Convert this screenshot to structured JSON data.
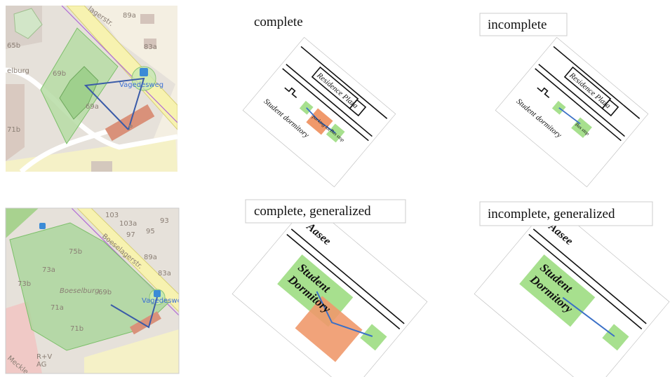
{
  "panels": {
    "complete": "complete",
    "incomplete": "incomplete",
    "complete_generalized": "complete, generalized",
    "incomplete_generalized": "incomplete, generalized"
  },
  "map_top": {
    "street": "lagerstr.",
    "labels": [
      "89a",
      "83a",
      "65b",
      "elburg",
      "69b",
      "69a",
      "71b"
    ],
    "bus_stop": "Vagedesweg"
  },
  "map_bottom": {
    "street": "Boeselagerstr.",
    "labels": [
      "103",
      "103a",
      "93",
      "97",
      "95",
      "89a",
      "83a",
      "75b",
      "73a",
      "73b",
      "Boeselburg",
      "69b",
      "71a",
      "71b",
      "R+V",
      "AG",
      "Meckle"
    ],
    "bus_stop": "Vagedesweg"
  },
  "sketch_complete": {
    "residence": "Residence Plaza",
    "dormitory": "Student dormitory",
    "parking": "parking lot",
    "bus": "Bus stop"
  },
  "sketch_incomplete": {
    "residence": "Residence Plaza",
    "dormitory": "Student dormitory",
    "bus": "Bus stop"
  },
  "sketch_complete_generalized": {
    "lake": "Aasee",
    "dormitory_1": "Student",
    "dormitory_2": "Dormitory"
  },
  "sketch_incomplete_generalized": {
    "lake": "Aasee",
    "dormitory_1": "Student",
    "dormitory_2": "Dormitory"
  }
}
